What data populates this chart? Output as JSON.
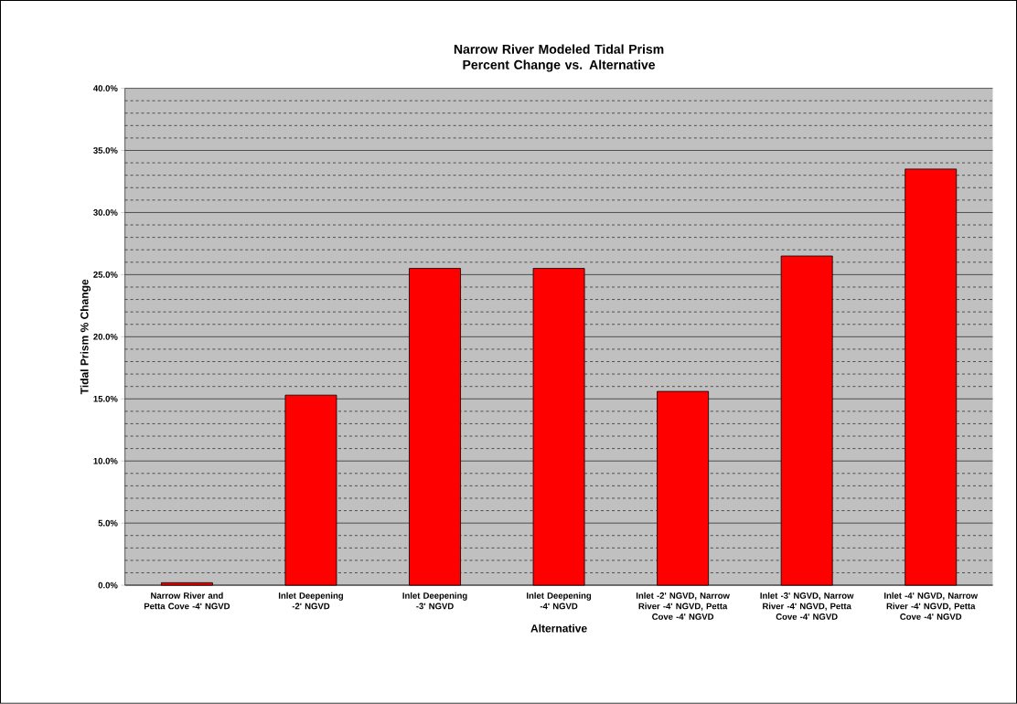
{
  "chart_data": {
    "type": "bar",
    "title": "Narrow River Modeled Tidal Prism\nPercent Change vs. Alternative",
    "xlabel": "Alternative",
    "ylabel": "Tidal Prism % Change",
    "categories": [
      "Narrow River and Petta Cove -4' NGVD",
      "Inlet Deepening -2' NGVD",
      "Inlet Deepening -3' NGVD",
      "Inlet Deepening -4' NGVD",
      "Inlet -2' NGVD, Narrow River -4' NGVD, Petta Cove -4' NGVD",
      "Inlet -3' NGVD, Narrow River -4' NGVD, Petta Cove -4' NGVD",
      "Inlet -4' NGVD, Narrow River -4' NGVD, Petta Cove -4' NGVD"
    ],
    "values": [
      0.2,
      15.3,
      25.5,
      25.5,
      15.6,
      26.5,
      33.5
    ],
    "color": "#ff0000",
    "ylim": [
      0,
      40
    ],
    "yticks": [
      {
        "value": 0,
        "label": "0.0%"
      },
      {
        "value": 5,
        "label": "5.0%"
      },
      {
        "value": 10,
        "label": "10.0%"
      },
      {
        "value": 15,
        "label": "15.0%"
      },
      {
        "value": 20,
        "label": "20.0%"
      },
      {
        "value": 25,
        "label": "25.0%"
      },
      {
        "value": 30,
        "label": "30.0%"
      },
      {
        "value": 35,
        "label": "35.0%"
      },
      {
        "value": 40,
        "label": "40.0%"
      }
    ],
    "grid": "y"
  }
}
